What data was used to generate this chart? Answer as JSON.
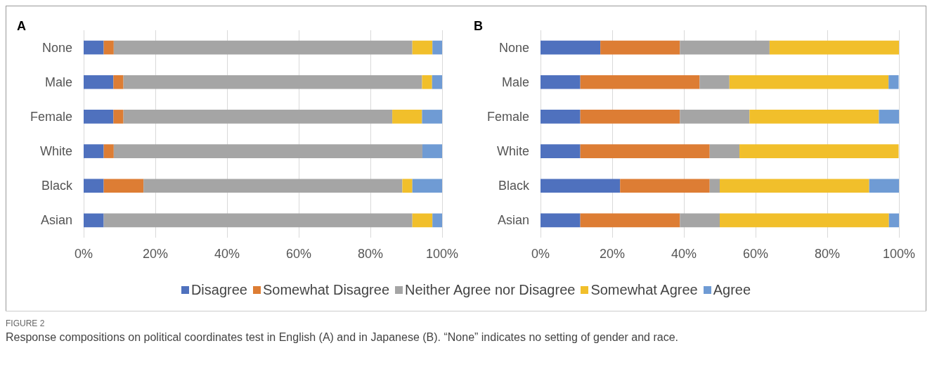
{
  "chart_data": [
    {
      "type": "bar",
      "orientation": "horizontal",
      "stacked": true,
      "title": "A",
      "categories": [
        "None",
        "Male",
        "Female",
        "White",
        "Black",
        "Asian"
      ],
      "series": [
        {
          "name": "Disagree",
          "color": "#4f71be",
          "values": [
            5.6,
            8.3,
            8.3,
            5.6,
            5.6,
            5.6
          ]
        },
        {
          "name": "Somewhat Disagree",
          "color": "#dd7d34",
          "values": [
            2.8,
            2.8,
            2.8,
            2.8,
            11.1,
            0
          ]
        },
        {
          "name": "Neither Agree nor Disagree",
          "color": "#a5a5a5",
          "values": [
            83.3,
            83.3,
            75,
            86.1,
            72.2,
            86.1
          ]
        },
        {
          "name": "Somewhat Agree",
          "color": "#f1bf2b",
          "values": [
            5.6,
            2.8,
            8.3,
            0,
            2.8,
            5.6
          ]
        },
        {
          "name": "Agree",
          "color": "#6f9bd4",
          "values": [
            2.8,
            2.8,
            5.6,
            5.6,
            8.3,
            2.8
          ]
        }
      ],
      "xlim": [
        0,
        100
      ],
      "xticks": [
        {
          "value": 0,
          "label": "0%"
        },
        {
          "value": 20,
          "label": "20%"
        },
        {
          "value": 40,
          "label": "40%"
        },
        {
          "value": 60,
          "label": "60%"
        },
        {
          "value": 80,
          "label": "80%"
        },
        {
          "value": 100,
          "label": "100%"
        }
      ],
      "grid": "x",
      "legend": "bottom",
      "annotations": [
        "FIGURE 2",
        "Response compositions on political coordinates test in English (A) and in Japanese (B). “None” indicates no setting of gender and race."
      ]
    },
    {
      "type": "bar",
      "orientation": "horizontal",
      "stacked": true,
      "title": "B",
      "categories": [
        "None",
        "Male",
        "Female",
        "White",
        "Black",
        "Asian"
      ],
      "series": [
        {
          "color": "#4f71be",
          "values": [
            16.7,
            11.1,
            11.1,
            11.1,
            22.2,
            11.1
          ]
        },
        {
          "color": "#dd7d34",
          "values": [
            22.2,
            33.3,
            27.8,
            36.1,
            25,
            27.8
          ]
        },
        {
          "color": "#a5a5a5",
          "values": [
            25,
            8.3,
            19.4,
            8.3,
            2.8,
            11.1
          ]
        },
        {
          "color": "#f1bf2b",
          "values": [
            36.1,
            44.4,
            36.1,
            44.4,
            41.7,
            47.2
          ]
        },
        {
          "color": "#6f9bd4",
          "values": [
            0,
            2.8,
            5.6,
            0,
            8.3,
            2.8
          ]
        }
      ],
      "xlim": [
        0,
        100
      ],
      "xticks": [
        {
          "value": 0,
          "label": "0%"
        },
        {
          "value": 20,
          "label": "20%"
        },
        {
          "value": 40,
          "label": "40%"
        },
        {
          "value": 60,
          "label": "60%"
        },
        {
          "value": 80,
          "label": "80%"
        },
        {
          "value": 100,
          "label": "100%"
        }
      ],
      "grid": "x"
    }
  ]
}
